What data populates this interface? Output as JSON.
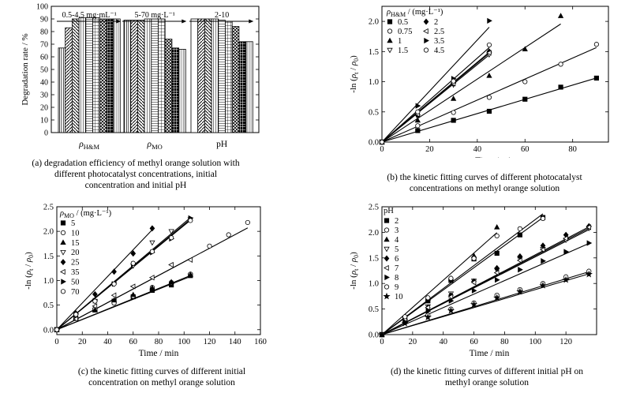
{
  "captions": {
    "a": "(a) degradation efficiency of methyl orange solution with different photocatalyst concentrations, initial concentration and initial pH",
    "b": "(b) the kinetic fitting curves of different photocatalyst concentrations on methyl orange solution",
    "c": "(c) the kinetic fitting curves of different initial concentration on methyl orange solution",
    "d": "(d) the kinetic fitting curves of different initial pH on methyl orange solution"
  },
  "chart_data": [
    {
      "id": "a",
      "type": "bar",
      "ylabel": "Degradation rate / %",
      "ylim": [
        0,
        100
      ],
      "yticks": [
        0,
        10,
        20,
        30,
        40,
        50,
        60,
        70,
        80,
        90,
        100
      ],
      "groups": [
        {
          "label": "ρH&M",
          "range_label": "0.5-4.5 mg·mL⁻¹",
          "values": [
            67,
            83,
            90,
            91,
            91,
            91,
            90,
            90,
            90
          ]
        },
        {
          "label": "ρMO",
          "range_label": "5-70 mg·L⁻¹",
          "values": [
            89,
            89,
            89,
            90,
            90,
            90,
            74,
            67,
            66
          ]
        },
        {
          "label": "pH",
          "range_label": "2-10",
          "values": [
            90,
            90,
            90,
            90,
            89,
            88,
            84,
            72,
            72
          ]
        }
      ]
    },
    {
      "id": "b",
      "type": "scatter",
      "xlabel": "Time / min",
      "ylabel": "-ln (ρt / ρ0)",
      "xlim": [
        0,
        95
      ],
      "ylim": [
        0,
        2.25
      ],
      "xticks": [
        0,
        20,
        40,
        60,
        80
      ],
      "yticks": [
        0.0,
        0.5,
        1.0,
        1.5,
        2.0
      ],
      "legend_title": "ρH&M / (mg·L⁻¹)",
      "legend_columns": 2,
      "series": [
        {
          "name": "0.5",
          "marker": "square-filled",
          "x": [
            0,
            15,
            30,
            45,
            60,
            75,
            90
          ],
          "y": [
            0,
            0.19,
            0.36,
            0.51,
            0.71,
            0.91,
            1.06
          ],
          "fit_slope": 0.0118,
          "fit_end": 90
        },
        {
          "name": "0.75",
          "marker": "circle-open",
          "x": [
            0,
            15,
            30,
            45,
            60,
            75,
            90
          ],
          "y": [
            0,
            0.27,
            0.49,
            0.74,
            1.0,
            1.29,
            1.62
          ],
          "fit_slope": 0.0174,
          "fit_end": 90
        },
        {
          "name": "1",
          "marker": "triangle-up-filled",
          "x": [
            0,
            15,
            30,
            45,
            60,
            75
          ],
          "y": [
            0,
            0.36,
            0.72,
            1.1,
            1.54,
            2.09
          ],
          "fit_slope": 0.0261,
          "fit_end": 75
        },
        {
          "name": "1.5",
          "marker": "triangle-down-open",
          "x": [
            0,
            15,
            30,
            45
          ],
          "y": [
            0,
            0.42,
            0.95,
            1.45
          ],
          "fit_slope": 0.0321,
          "fit_end": 45
        },
        {
          "name": "2",
          "marker": "diamond-filled",
          "x": [
            0,
            15,
            30,
            45
          ],
          "y": [
            0,
            0.45,
            0.98,
            1.5
          ],
          "fit_slope": 0.0331,
          "fit_end": 45
        },
        {
          "name": "2.5",
          "marker": "triangle-left-open",
          "x": [
            0,
            15,
            30,
            45
          ],
          "y": [
            0,
            0.46,
            0.97,
            1.48
          ],
          "fit_slope": 0.0327,
          "fit_end": 45
        },
        {
          "name": "3.5",
          "marker": "triangle-right-filled",
          "x": [
            0,
            15,
            30,
            45
          ],
          "y": [
            0,
            0.6,
            1.05,
            2.01
          ],
          "fit_slope": 0.0423,
          "fit_end": 45
        },
        {
          "name": "4.5",
          "marker": "circle-open",
          "x": [
            0,
            15,
            30,
            45
          ],
          "y": [
            0,
            0.5,
            1.01,
            1.61
          ],
          "fit_slope": 0.0348,
          "fit_end": 45
        }
      ]
    },
    {
      "id": "c",
      "type": "scatter",
      "xlabel": "Time / min",
      "ylabel": "-ln (ρt / ρ0)",
      "xlim": [
        0,
        160
      ],
      "ylim": [
        -0.1,
        2.5
      ],
      "xticks": [
        0,
        20,
        40,
        60,
        80,
        100,
        120,
        140,
        160
      ],
      "yticks": [
        0.0,
        0.5,
        1.0,
        1.5,
        2.0,
        2.5
      ],
      "legend_title": "ρMO / (mg·L⁻¹)",
      "legend_columns": 1,
      "series": [
        {
          "name": "5",
          "marker": "square-filled",
          "x": [
            0,
            15,
            30,
            45,
            60,
            75,
            90,
            105
          ],
          "y": [
            0,
            0.23,
            0.4,
            0.58,
            0.67,
            0.8,
            0.91,
            1.1
          ],
          "fit_slope": 0.0103,
          "fit_end": 105
        },
        {
          "name": "10",
          "marker": "circle-open",
          "x": [
            0,
            15,
            30,
            45,
            60,
            75,
            90,
            105,
            120,
            135,
            150
          ],
          "y": [
            0,
            0.24,
            0.42,
            0.54,
            0.68,
            0.86,
            0.96,
            1.13,
            1.7,
            1.93,
            2.18
          ],
          "fit_slope": 0.0138,
          "fit_end": 150
        },
        {
          "name": "15",
          "marker": "triangle-up-filled",
          "x": [
            0,
            15,
            30,
            45,
            60,
            75,
            90,
            105
          ],
          "y": [
            0,
            0.24,
            0.4,
            0.6,
            0.71,
            0.85,
            0.97,
            1.12
          ],
          "fit_slope": 0.0105,
          "fit_end": 105
        },
        {
          "name": "20",
          "marker": "triangle-down-open",
          "x": [
            0,
            15,
            30,
            45,
            60,
            75,
            90,
            105
          ],
          "y": [
            0,
            0.28,
            0.58,
            0.93,
            1.3,
            1.77,
            2.0,
            2.24
          ],
          "fit_slope": 0.0217,
          "fit_end": 105
        },
        {
          "name": "25",
          "marker": "diamond-filled",
          "x": [
            0,
            15,
            30,
            45,
            60,
            75
          ],
          "y": [
            0,
            0.33,
            0.72,
            1.18,
            1.55,
            2.06
          ],
          "fit_slope": 0.0271,
          "fit_end": 75
        },
        {
          "name": "35",
          "marker": "triangle-left-open",
          "x": [
            0,
            15,
            30,
            45,
            60,
            75,
            90,
            105
          ],
          "y": [
            0,
            0.22,
            0.48,
            0.7,
            0.88,
            1.06,
            1.32,
            1.42
          ],
          "fit_slope": 0.0138,
          "fit_end": 105
        },
        {
          "name": "50",
          "marker": "triangle-right-filled",
          "x": [
            0,
            15,
            30,
            45,
            60,
            75,
            90,
            105
          ],
          "y": [
            0,
            0.32,
            0.59,
            0.93,
            1.33,
            1.57,
            1.85,
            2.27
          ],
          "fit_slope": 0.0214,
          "fit_end": 105
        },
        {
          "name": "70",
          "marker": "circle-open",
          "x": [
            0,
            15,
            30,
            45,
            60,
            75,
            90,
            105
          ],
          "y": [
            0,
            0.31,
            0.58,
            0.93,
            1.35,
            1.59,
            1.87,
            2.22
          ],
          "fit_slope": 0.0212,
          "fit_end": 105
        }
      ]
    },
    {
      "id": "d",
      "type": "scatter",
      "xlabel": "Time / min",
      "ylabel": "-ln (ρt / ρ0)",
      "xlim": [
        0,
        140
      ],
      "ylim": [
        0,
        2.5
      ],
      "xticks": [
        0,
        20,
        40,
        60,
        80,
        100,
        120
      ],
      "yticks": [
        0.0,
        0.5,
        1.0,
        1.5,
        2.0,
        2.5
      ],
      "legend_title": "pH",
      "legend_columns": 1,
      "series": [
        {
          "name": "2",
          "marker": "square-filled",
          "x": [
            0,
            15,
            30,
            45,
            60,
            75,
            90,
            105
          ],
          "y": [
            0,
            0.32,
            0.66,
            1.06,
            1.48,
            1.59,
            1.95,
            2.29
          ],
          "fit_slope": 0.0218,
          "fit_end": 105
        },
        {
          "name": "3",
          "marker": "circle-open",
          "x": [
            0,
            15,
            30,
            45,
            60,
            75,
            90,
            105,
            120,
            135
          ],
          "y": [
            0,
            0.24,
            0.38,
            0.5,
            0.62,
            0.77,
            0.88,
            1.0,
            1.13,
            1.24
          ],
          "fit_slope": 0.0091,
          "fit_end": 135
        },
        {
          "name": "4",
          "marker": "triangle-up-filled",
          "x": [
            0,
            15,
            30,
            45,
            60,
            75
          ],
          "y": [
            0,
            0.32,
            0.71,
            1.1,
            1.54,
            2.1
          ],
          "fit_slope": 0.0266,
          "fit_end": 75
        },
        {
          "name": "5",
          "marker": "triangle-down-open",
          "x": [
            0,
            15,
            30,
            45,
            60,
            75,
            90,
            105,
            120,
            135
          ],
          "y": [
            0,
            0.32,
            0.55,
            0.8,
            1.05,
            1.26,
            1.48,
            1.67,
            1.85,
            2.08
          ],
          "fit_slope": 0.0152,
          "fit_end": 135
        },
        {
          "name": "6",
          "marker": "diamond-filled",
          "x": [
            0,
            15,
            30,
            45,
            60,
            75,
            90,
            105,
            120,
            135
          ],
          "y": [
            0,
            0.3,
            0.53,
            0.77,
            1.04,
            1.3,
            1.53,
            1.74,
            1.95,
            2.12
          ],
          "fit_slope": 0.0156,
          "fit_end": 135
        },
        {
          "name": "7",
          "marker": "triangle-left-open",
          "x": [
            0,
            15,
            30,
            45,
            60,
            75,
            90,
            105,
            120,
            135
          ],
          "y": [
            0,
            0.29,
            0.53,
            0.74,
            1.02,
            1.21,
            1.45,
            1.66,
            1.88,
            2.1
          ],
          "fit_slope": 0.0154,
          "fit_end": 135
        },
        {
          "name": "8",
          "marker": "triangle-right-filled",
          "x": [
            0,
            15,
            30,
            45,
            60,
            75,
            90,
            105,
            120,
            135
          ],
          "y": [
            0,
            0.25,
            0.46,
            0.66,
            0.86,
            1.07,
            1.27,
            1.44,
            1.62,
            1.79
          ],
          "fit_slope": 0.0132,
          "fit_end": 135
        },
        {
          "name": "9",
          "marker": "circle-open",
          "x": [
            0,
            15,
            30,
            45,
            60,
            75,
            90,
            105
          ],
          "y": [
            0,
            0.35,
            0.72,
            1.1,
            1.49,
            1.93,
            2.07,
            2.27
          ],
          "fit_slope": 0.0225,
          "fit_end": 105
        },
        {
          "name": "10",
          "marker": "star-filled",
          "x": [
            0,
            15,
            30,
            45,
            60,
            75,
            90,
            105,
            120,
            135
          ],
          "y": [
            0,
            0.22,
            0.34,
            0.47,
            0.59,
            0.72,
            0.84,
            0.96,
            1.07,
            1.18
          ],
          "fit_slope": 0.0088,
          "fit_end": 135
        }
      ]
    }
  ]
}
